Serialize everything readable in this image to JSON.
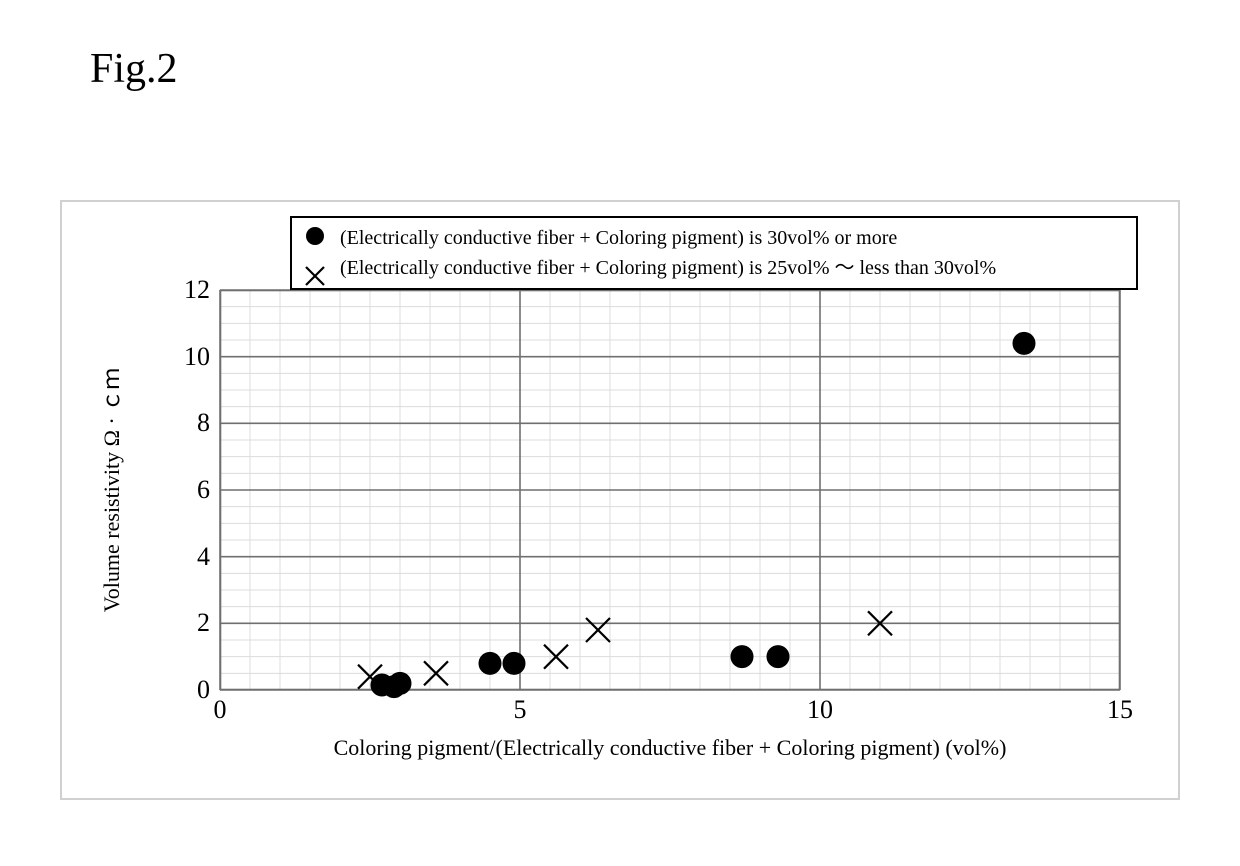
{
  "figure_title": "Fig.2",
  "chart": {
    "type": "scatter",
    "background_color": "#ffffff",
    "outer_border_color": "#d0d0d0",
    "major_grid_color": "#6f6f6f",
    "minor_grid_color": "#dcdcdc",
    "axis_color": "#000000",
    "xlabel": "Coloring pigment/(Electrically conductive fiber + Coloring pigment) (vol%)",
    "ylabel": "Volume resistivity  Ω · ｃｍ",
    "xlim": [
      0,
      15
    ],
    "ylim": [
      0,
      12
    ],
    "x_major_ticks": [
      0,
      5,
      10,
      15
    ],
    "y_major_ticks": [
      0,
      2,
      4,
      6,
      8,
      10,
      12
    ],
    "x_minor_step": 0.5,
    "y_minor_step": 0.5,
    "xtick_fontsize": 26,
    "ytick_fontsize": 26,
    "label_fontsize": 22,
    "title_fontsize": 42,
    "series": [
      {
        "name": "series_30plus",
        "marker": "circle",
        "marker_size": 11,
        "marker_fill": "#000000",
        "marker_stroke": "#000000",
        "points": [
          {
            "x": 2.7,
            "y": 0.15
          },
          {
            "x": 2.9,
            "y": 0.1
          },
          {
            "x": 3.0,
            "y": 0.2
          },
          {
            "x": 4.5,
            "y": 0.8
          },
          {
            "x": 4.9,
            "y": 0.8
          },
          {
            "x": 8.7,
            "y": 1.0
          },
          {
            "x": 9.3,
            "y": 1.0
          },
          {
            "x": 13.4,
            "y": 10.4
          }
        ]
      },
      {
        "name": "series_25_30",
        "marker": "x",
        "marker_size": 12,
        "marker_stroke": "#000000",
        "marker_linewidth": 2.2,
        "points": [
          {
            "x": 2.5,
            "y": 0.4
          },
          {
            "x": 3.6,
            "y": 0.5
          },
          {
            "x": 5.6,
            "y": 1.0
          },
          {
            "x": 6.3,
            "y": 1.8
          },
          {
            "x": 11.0,
            "y": 2.0
          }
        ]
      }
    ],
    "major_grid_linewidth": 1.6,
    "minor_grid_linewidth": 1.0
  },
  "legend": {
    "border_color": "#000000",
    "background_color": "#ffffff",
    "fontsize": 20,
    "items": [
      {
        "series": "series_30plus",
        "marker": "circle",
        "label": "(Electrically conductive fiber + Coloring pigment) is 30vol% or more"
      },
      {
        "series": "series_25_30",
        "marker": "x",
        "label": "(Electrically conductive fiber + Coloring pigment) is 25vol% ～ less than 30vol%"
      }
    ]
  }
}
